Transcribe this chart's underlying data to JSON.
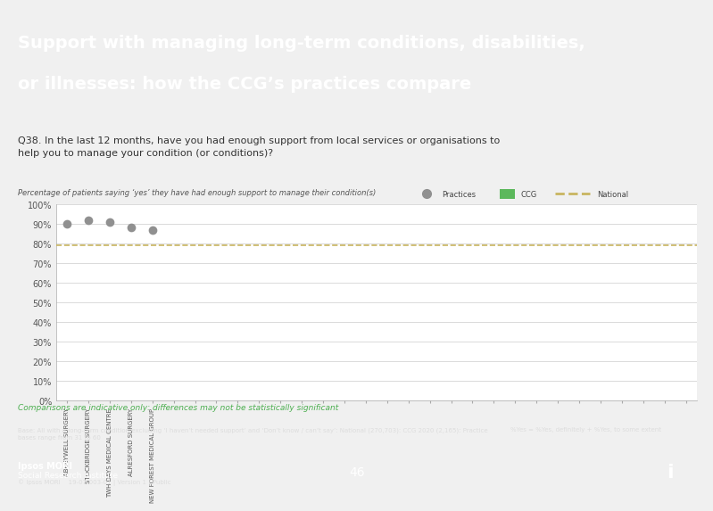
{
  "title_line1": "Support with managing long-term conditions, disabilities,",
  "title_line2": "or illnesses: how the CCG’s practices compare",
  "title_bg": "#5b7fa6",
  "title_text_color": "#ffffff",
  "question_text": "Q38. In the last 12 months, have you had enough support from local services or organisations to\nhelp you to manage your condition (or conditions)?",
  "question_bg": "#d0d0d0",
  "question_text_color": "#333333",
  "subtitle": "Percentage of patients saying ‘yes’ they have had enough support to manage their condition(s)",
  "subtitle_color": "#555555",
  "practices": [
    "ABBEYWELL SURGERY",
    "STOCKBRIDGE SURGERY",
    "TWH DAYS MEDICAL CENTRE",
    "ALRESFORD SURGERY",
    "NEW FOREST MEDICAL GROUP"
  ],
  "practice_values": [
    0.9,
    0.92,
    0.91,
    0.88,
    0.87
  ],
  "n_total_ticks": 30,
  "practice_color": "#909090",
  "ccg_color": "#5cb85c",
  "national_value": 0.79,
  "national_color": "#c8b560",
  "ylim": [
    0,
    1.0
  ],
  "yticks": [
    0,
    0.1,
    0.2,
    0.3,
    0.4,
    0.5,
    0.6,
    0.7,
    0.8,
    0.9,
    1.0
  ],
  "ytick_labels": [
    "0%",
    "10%",
    "20%",
    "30%",
    "40%",
    "50%",
    "60%",
    "70%",
    "80%",
    "90%",
    "100%"
  ],
  "chart_bg": "#ffffff",
  "grid_color": "#cccccc",
  "footer_note": "Comparisons are indicative only: differences may not be statistically significant",
  "footer_note_color": "#4caf50",
  "base_text_left": "Base: All with a long-term condition excluding ‘I haven’t needed support’ and ‘Don’t know / can’t say’: National (270,703): CCG 2020 (2,165): Practice\nbases range from 31 to 60",
  "base_text_right": "%Yes = %Yes, definitely + %Yes, to some extent",
  "page_number": "46",
  "dark_footer_bg": "#555555",
  "blue_footer_bg": "#6b8cba",
  "ipsos_text1": "Ipsos MORI",
  "ipsos_text2": "Social Research Institute",
  "ipsos_date": "© Ipsos MORI    19-07-003-01 | Version 1 | Public"
}
